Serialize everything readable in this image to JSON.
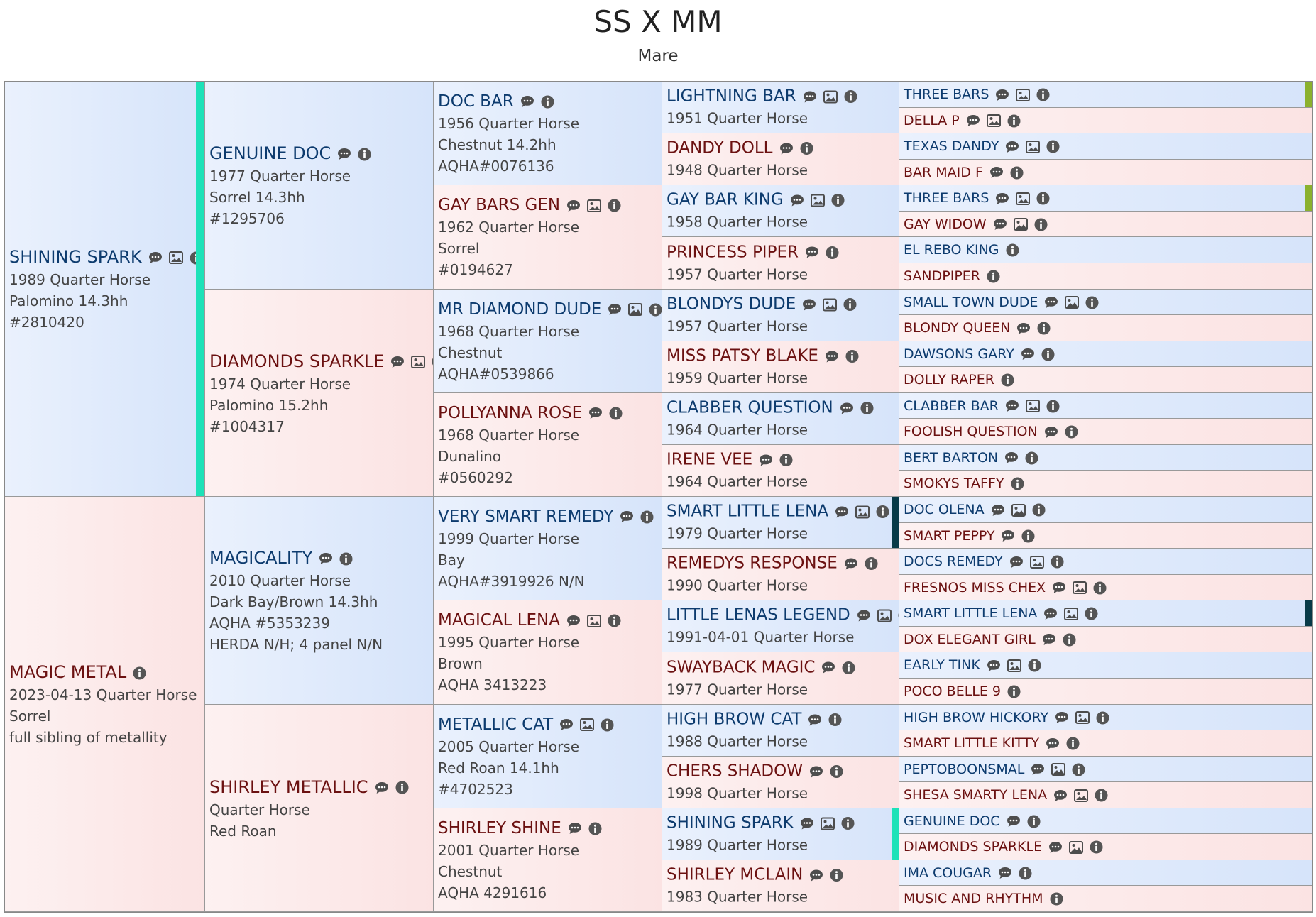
{
  "page": {
    "title": "SS X MM",
    "subtitle": "Mare"
  },
  "colors": {
    "sire_bg": "#dde8fb",
    "dam_bg": "#fbe6e6",
    "sire_text": "#0d3b6e",
    "dam_text": "#6b1111",
    "shining_spark_marker": "#1de2b8",
    "three_bars_marker": "#8bb12e",
    "smart_little_lena_marker": "#073a48"
  },
  "pedigree": [
    {
      "gen": 0,
      "slot": 0,
      "sex": "m",
      "name": "SHINING SPARK",
      "icons": [
        "comment-icon",
        "image-icon",
        "info-icon"
      ],
      "lines": [
        "1989 Quarter Horse",
        "Palomino 14.3hh",
        "#2810420"
      ],
      "marker": "#1de2b8"
    },
    {
      "gen": 0,
      "slot": 1,
      "sex": "f",
      "name": "MAGIC METAL",
      "icons": [
        "info-icon"
      ],
      "lines": [
        "2023-04-13 Quarter Horse",
        "Sorrel",
        "full sibling of metallity"
      ]
    },
    {
      "gen": 1,
      "slot": 0,
      "sex": "m",
      "name": "GENUINE DOC",
      "icons": [
        "comment-icon",
        "info-icon"
      ],
      "lines": [
        "1977 Quarter Horse",
        "Sorrel 14.3hh",
        "#1295706"
      ]
    },
    {
      "gen": 1,
      "slot": 1,
      "sex": "f",
      "name": "DIAMONDS SPARKLE",
      "icons": [
        "comment-icon",
        "image-icon",
        "info-icon"
      ],
      "lines": [
        "1974 Quarter Horse",
        "Palomino 15.2hh",
        "#1004317"
      ]
    },
    {
      "gen": 1,
      "slot": 2,
      "sex": "m",
      "name": "MAGICALITY",
      "icons": [
        "comment-icon",
        "info-icon"
      ],
      "lines": [
        "2010 Quarter Horse",
        "Dark Bay/Brown 14.3hh",
        "AQHA #5353239",
        "HERDA N/H; 4 panel N/N"
      ]
    },
    {
      "gen": 1,
      "slot": 3,
      "sex": "f",
      "name": "SHIRLEY METALLIC",
      "icons": [
        "comment-icon",
        "info-icon"
      ],
      "lines": [
        "Quarter Horse",
        "Red Roan"
      ]
    },
    {
      "gen": 2,
      "slot": 0,
      "sex": "m",
      "name": "DOC BAR",
      "icons": [
        "comment-icon",
        "info-icon"
      ],
      "lines": [
        "1956 Quarter Horse",
        "Chestnut 14.2hh",
        "AQHA#0076136"
      ]
    },
    {
      "gen": 2,
      "slot": 1,
      "sex": "f",
      "name": "GAY BARS GEN",
      "icons": [
        "comment-icon",
        "image-icon",
        "info-icon"
      ],
      "lines": [
        "1962 Quarter Horse",
        "Sorrel",
        "#0194627"
      ]
    },
    {
      "gen": 2,
      "slot": 2,
      "sex": "m",
      "name": "MR DIAMOND DUDE",
      "icons": [
        "comment-icon",
        "image-icon",
        "info-icon"
      ],
      "lines": [
        "1968 Quarter Horse",
        "Chestnut",
        "AQHA#0539866"
      ]
    },
    {
      "gen": 2,
      "slot": 3,
      "sex": "f",
      "name": "POLLYANNA ROSE",
      "icons": [
        "comment-icon",
        "info-icon"
      ],
      "lines": [
        "1968 Quarter Horse",
        "Dunalino",
        "#0560292"
      ]
    },
    {
      "gen": 2,
      "slot": 4,
      "sex": "m",
      "name": "VERY SMART REMEDY",
      "icons": [
        "comment-icon",
        "info-icon"
      ],
      "lines": [
        "1999 Quarter Horse",
        "Bay",
        "AQHA#3919926 N/N"
      ]
    },
    {
      "gen": 2,
      "slot": 5,
      "sex": "f",
      "name": "MAGICAL LENA",
      "icons": [
        "comment-icon",
        "image-icon",
        "info-icon"
      ],
      "lines": [
        "1995 Quarter Horse",
        "Brown",
        "AQHA 3413223"
      ]
    },
    {
      "gen": 2,
      "slot": 6,
      "sex": "m",
      "name": "METALLIC CAT",
      "icons": [
        "comment-icon",
        "image-icon",
        "info-icon"
      ],
      "lines": [
        "2005 Quarter Horse",
        "Red Roan 14.1hh",
        "#4702523"
      ]
    },
    {
      "gen": 2,
      "slot": 7,
      "sex": "f",
      "name": "SHIRLEY SHINE",
      "icons": [
        "comment-icon",
        "info-icon"
      ],
      "lines": [
        "2001 Quarter Horse",
        "Chestnut",
        "AQHA 4291616"
      ]
    },
    {
      "gen": 3,
      "slot": 0,
      "sex": "m",
      "name": "LIGHTNING BAR",
      "icons": [
        "comment-icon",
        "image-icon",
        "info-icon"
      ],
      "lines": [
        "1951 Quarter Horse"
      ]
    },
    {
      "gen": 3,
      "slot": 1,
      "sex": "f",
      "name": "DANDY DOLL",
      "icons": [
        "comment-icon",
        "info-icon"
      ],
      "lines": [
        "1948 Quarter Horse"
      ]
    },
    {
      "gen": 3,
      "slot": 2,
      "sex": "m",
      "name": "GAY BAR KING",
      "icons": [
        "comment-icon",
        "image-icon",
        "info-icon"
      ],
      "lines": [
        "1958 Quarter Horse"
      ]
    },
    {
      "gen": 3,
      "slot": 3,
      "sex": "f",
      "name": "PRINCESS PIPER",
      "icons": [
        "comment-icon",
        "info-icon"
      ],
      "lines": [
        "1957 Quarter Horse"
      ]
    },
    {
      "gen": 3,
      "slot": 4,
      "sex": "m",
      "name": "BLONDYS DUDE",
      "icons": [
        "comment-icon",
        "image-icon",
        "info-icon"
      ],
      "lines": [
        "1957 Quarter Horse"
      ]
    },
    {
      "gen": 3,
      "slot": 5,
      "sex": "f",
      "name": "MISS PATSY BLAKE",
      "icons": [
        "comment-icon",
        "info-icon"
      ],
      "lines": [
        "1959 Quarter Horse"
      ]
    },
    {
      "gen": 3,
      "slot": 6,
      "sex": "m",
      "name": "CLABBER QUESTION",
      "icons": [
        "comment-icon",
        "info-icon"
      ],
      "lines": [
        "1964 Quarter Horse"
      ]
    },
    {
      "gen": 3,
      "slot": 7,
      "sex": "f",
      "name": "IRENE VEE",
      "icons": [
        "comment-icon",
        "info-icon"
      ],
      "lines": [
        "1964 Quarter Horse"
      ]
    },
    {
      "gen": 3,
      "slot": 8,
      "sex": "m",
      "name": "SMART LITTLE LENA",
      "icons": [
        "comment-icon",
        "image-icon",
        "info-icon"
      ],
      "lines": [
        "1979 Quarter Horse"
      ],
      "marker": "#073a48"
    },
    {
      "gen": 3,
      "slot": 9,
      "sex": "f",
      "name": "REMEDYS RESPONSE",
      "icons": [
        "comment-icon",
        "info-icon"
      ],
      "lines": [
        "1990 Quarter Horse"
      ]
    },
    {
      "gen": 3,
      "slot": 10,
      "sex": "m",
      "name": "LITTLE LENAS LEGEND",
      "icons": [
        "comment-icon",
        "image-icon",
        "info-icon"
      ],
      "lines": [
        "1991-04-01 Quarter Horse"
      ]
    },
    {
      "gen": 3,
      "slot": 11,
      "sex": "f",
      "name": "SWAYBACK MAGIC",
      "icons": [
        "comment-icon",
        "info-icon"
      ],
      "lines": [
        "1977 Quarter Horse"
      ]
    },
    {
      "gen": 3,
      "slot": 12,
      "sex": "m",
      "name": "HIGH BROW CAT",
      "icons": [
        "comment-icon",
        "info-icon"
      ],
      "lines": [
        "1988 Quarter Horse"
      ]
    },
    {
      "gen": 3,
      "slot": 13,
      "sex": "f",
      "name": "CHERS SHADOW",
      "icons": [
        "comment-icon",
        "info-icon"
      ],
      "lines": [
        "1998 Quarter Horse"
      ]
    },
    {
      "gen": 3,
      "slot": 14,
      "sex": "m",
      "name": "SHINING SPARK",
      "icons": [
        "comment-icon",
        "image-icon",
        "info-icon"
      ],
      "lines": [
        "1989 Quarter Horse"
      ],
      "marker": "#1de2b8"
    },
    {
      "gen": 3,
      "slot": 15,
      "sex": "f",
      "name": "SHIRLEY MCLAIN",
      "icons": [
        "comment-icon",
        "info-icon"
      ],
      "lines": [
        "1983 Quarter Horse"
      ]
    },
    {
      "gen": 4,
      "slot": 0,
      "sex": "m",
      "name": "THREE BARS",
      "icons": [
        "comment-icon",
        "image-icon",
        "info-icon"
      ],
      "lines": [],
      "marker": "#8bb12e"
    },
    {
      "gen": 4,
      "slot": 1,
      "sex": "f",
      "name": "DELLA P",
      "icons": [
        "comment-icon",
        "image-icon",
        "info-icon"
      ],
      "lines": []
    },
    {
      "gen": 4,
      "slot": 2,
      "sex": "m",
      "name": "TEXAS DANDY",
      "icons": [
        "comment-icon",
        "image-icon",
        "info-icon"
      ],
      "lines": []
    },
    {
      "gen": 4,
      "slot": 3,
      "sex": "f",
      "name": "BAR MAID F",
      "icons": [
        "comment-icon",
        "info-icon"
      ],
      "lines": []
    },
    {
      "gen": 4,
      "slot": 4,
      "sex": "m",
      "name": "THREE BARS",
      "icons": [
        "comment-icon",
        "image-icon",
        "info-icon"
      ],
      "lines": [],
      "marker": "#8bb12e"
    },
    {
      "gen": 4,
      "slot": 5,
      "sex": "f",
      "name": "GAY WIDOW",
      "icons": [
        "comment-icon",
        "image-icon",
        "info-icon"
      ],
      "lines": []
    },
    {
      "gen": 4,
      "slot": 6,
      "sex": "m",
      "name": "EL REBO KING",
      "icons": [
        "info-icon"
      ],
      "lines": []
    },
    {
      "gen": 4,
      "slot": 7,
      "sex": "f",
      "name": "SANDPIPER",
      "icons": [
        "info-icon"
      ],
      "lines": []
    },
    {
      "gen": 4,
      "slot": 8,
      "sex": "m",
      "name": "SMALL TOWN DUDE",
      "icons": [
        "comment-icon",
        "image-icon",
        "info-icon"
      ],
      "lines": []
    },
    {
      "gen": 4,
      "slot": 9,
      "sex": "f",
      "name": "BLONDY QUEEN",
      "icons": [
        "comment-icon",
        "info-icon"
      ],
      "lines": []
    },
    {
      "gen": 4,
      "slot": 10,
      "sex": "m",
      "name": "DAWSONS GARY",
      "icons": [
        "comment-icon",
        "info-icon"
      ],
      "lines": []
    },
    {
      "gen": 4,
      "slot": 11,
      "sex": "f",
      "name": "DOLLY RAPER",
      "icons": [
        "info-icon"
      ],
      "lines": []
    },
    {
      "gen": 4,
      "slot": 12,
      "sex": "m",
      "name": "CLABBER BAR",
      "icons": [
        "comment-icon",
        "image-icon",
        "info-icon"
      ],
      "lines": []
    },
    {
      "gen": 4,
      "slot": 13,
      "sex": "f",
      "name": "FOOLISH QUESTION",
      "icons": [
        "comment-icon",
        "info-icon"
      ],
      "lines": []
    },
    {
      "gen": 4,
      "slot": 14,
      "sex": "m",
      "name": "BERT BARTON",
      "icons": [
        "comment-icon",
        "info-icon"
      ],
      "lines": []
    },
    {
      "gen": 4,
      "slot": 15,
      "sex": "f",
      "name": "SMOKYS TAFFY",
      "icons": [
        "info-icon"
      ],
      "lines": []
    },
    {
      "gen": 4,
      "slot": 16,
      "sex": "m",
      "name": "DOC OLENA",
      "icons": [
        "comment-icon",
        "image-icon",
        "info-icon"
      ],
      "lines": []
    },
    {
      "gen": 4,
      "slot": 17,
      "sex": "f",
      "name": "SMART PEPPY",
      "icons": [
        "comment-icon",
        "info-icon"
      ],
      "lines": []
    },
    {
      "gen": 4,
      "slot": 18,
      "sex": "m",
      "name": "DOCS REMEDY",
      "icons": [
        "comment-icon",
        "image-icon",
        "info-icon"
      ],
      "lines": []
    },
    {
      "gen": 4,
      "slot": 19,
      "sex": "f",
      "name": "FRESNOS MISS CHEX",
      "icons": [
        "comment-icon",
        "image-icon",
        "info-icon"
      ],
      "lines": []
    },
    {
      "gen": 4,
      "slot": 20,
      "sex": "m",
      "name": "SMART LITTLE LENA",
      "icons": [
        "comment-icon",
        "image-icon",
        "info-icon"
      ],
      "lines": [],
      "marker": "#073a48"
    },
    {
      "gen": 4,
      "slot": 21,
      "sex": "f",
      "name": "DOX ELEGANT GIRL",
      "icons": [
        "comment-icon",
        "info-icon"
      ],
      "lines": []
    },
    {
      "gen": 4,
      "slot": 22,
      "sex": "m",
      "name": "EARLY TINK",
      "icons": [
        "comment-icon",
        "image-icon",
        "info-icon"
      ],
      "lines": []
    },
    {
      "gen": 4,
      "slot": 23,
      "sex": "f",
      "name": "POCO BELLE 9",
      "icons": [
        "info-icon"
      ],
      "lines": []
    },
    {
      "gen": 4,
      "slot": 24,
      "sex": "m",
      "name": "HIGH BROW HICKORY",
      "icons": [
        "comment-icon",
        "image-icon",
        "info-icon"
      ],
      "lines": []
    },
    {
      "gen": 4,
      "slot": 25,
      "sex": "f",
      "name": "SMART LITTLE KITTY",
      "icons": [
        "comment-icon",
        "info-icon"
      ],
      "lines": []
    },
    {
      "gen": 4,
      "slot": 26,
      "sex": "m",
      "name": "PEPTOBOONSMAL",
      "icons": [
        "comment-icon",
        "image-icon",
        "info-icon"
      ],
      "lines": []
    },
    {
      "gen": 4,
      "slot": 27,
      "sex": "f",
      "name": "SHESA SMARTY LENA",
      "icons": [
        "comment-icon",
        "image-icon",
        "info-icon"
      ],
      "lines": []
    },
    {
      "gen": 4,
      "slot": 28,
      "sex": "m",
      "name": "GENUINE DOC",
      "icons": [
        "comment-icon",
        "info-icon"
      ],
      "lines": []
    },
    {
      "gen": 4,
      "slot": 29,
      "sex": "f",
      "name": "DIAMONDS SPARKLE",
      "icons": [
        "comment-icon",
        "image-icon",
        "info-icon"
      ],
      "lines": []
    },
    {
      "gen": 4,
      "slot": 30,
      "sex": "m",
      "name": "IMA COUGAR",
      "icons": [
        "comment-icon",
        "info-icon"
      ],
      "lines": []
    },
    {
      "gen": 4,
      "slot": 31,
      "sex": "f",
      "name": "MUSIC AND RHYTHM",
      "icons": [
        "info-icon"
      ],
      "lines": []
    }
  ]
}
